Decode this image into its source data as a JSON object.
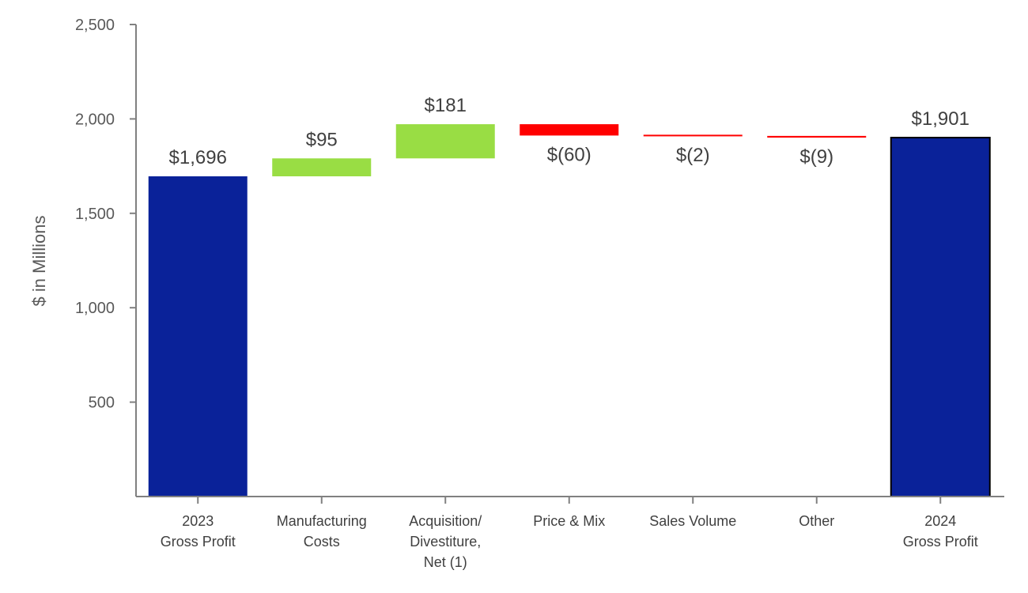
{
  "chart_data": {
    "type": "bar",
    "subtype": "waterfall",
    "ylabel": "$ in Millions",
    "ylim": [
      0,
      2500
    ],
    "yticks": [
      500,
      1000,
      1500,
      2000,
      2500
    ],
    "ytick_labels": [
      "500",
      "1,000",
      "1,500",
      "2,000",
      "2,500"
    ],
    "grid": false,
    "categories": [
      {
        "lines": [
          "2023",
          "Gross Profit"
        ],
        "kind": "total",
        "start": 0,
        "end": 1696,
        "label": "$1,696"
      },
      {
        "lines": [
          "Manufacturing",
          "Costs"
        ],
        "kind": "increase",
        "start": 1696,
        "end": 1791,
        "label": "$95"
      },
      {
        "lines": [
          "Acquisition/",
          "Divestiture,",
          "Net (1)"
        ],
        "kind": "increase",
        "start": 1791,
        "end": 1972,
        "label": "$181"
      },
      {
        "lines": [
          "Price & Mix"
        ],
        "kind": "decrease",
        "start": 1972,
        "end": 1912,
        "label": "$(60)"
      },
      {
        "lines": [
          "Sales Volume"
        ],
        "kind": "decrease",
        "start": 1912,
        "end": 1910,
        "label": "$(2)"
      },
      {
        "lines": [
          "Other"
        ],
        "kind": "decrease",
        "start": 1910,
        "end": 1901,
        "label": "$(9)"
      },
      {
        "lines": [
          "2024",
          "Gross Profit"
        ],
        "kind": "total",
        "start": 0,
        "end": 1901,
        "label": "$1,901"
      }
    ],
    "colors": {
      "total": "#0a2299",
      "increase": "#99dd44",
      "decrease": "#ff0000",
      "axis": "#808080"
    }
  }
}
